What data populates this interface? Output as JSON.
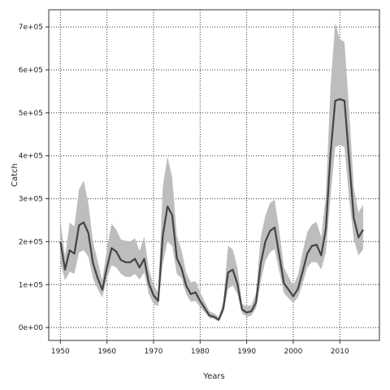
{
  "chart_data": {
    "type": "line",
    "title": "",
    "xlabel": "Years",
    "ylabel": "Catch",
    "xlim": [
      1947.5,
      2018.5
    ],
    "ylim": [
      -30000,
      740000
    ],
    "x_ticks": [
      1950,
      1960,
      1970,
      1980,
      1990,
      2000,
      2010
    ],
    "x_tick_labels": [
      "1950",
      "1960",
      "1970",
      "1980",
      "1990",
      "2000",
      "2010"
    ],
    "y_ticks": [
      0,
      100000,
      200000,
      300000,
      400000,
      500000,
      600000,
      700000
    ],
    "y_tick_labels": [
      "0e+00",
      "1e+05",
      "2e+05",
      "3e+05",
      "4e+05",
      "5e+05",
      "6e+05",
      "7e+05"
    ],
    "grid": true,
    "colors": {
      "line": "#444444",
      "band": "#bdbdbd",
      "grid": "#333333",
      "frame": "#333333"
    },
    "series": [
      {
        "x": [
          1950,
          1951,
          1952,
          1953,
          1954,
          1955,
          1956,
          1957,
          1958,
          1959,
          1960,
          1961,
          1962,
          1963,
          1964,
          1965,
          1966,
          1967,
          1968,
          1969,
          1970,
          1971,
          1972,
          1973,
          1974,
          1975,
          1976,
          1977,
          1978,
          1979,
          1980,
          1981,
          1982,
          1983,
          1984,
          1985,
          1986,
          1987,
          1988,
          1989,
          1990,
          1991,
          1992,
          1993,
          1994,
          1995,
          1996,
          1997,
          1998,
          1999,
          2000,
          2001,
          2002,
          2003,
          2004,
          2005,
          2006,
          2007,
          2008,
          2009,
          2010,
          2011,
          2012,
          2013,
          2014,
          2015
        ],
        "values": [
          200000,
          135000,
          180000,
          172000,
          238000,
          245000,
          220000,
          150000,
          115000,
          88000,
          140000,
          185000,
          177000,
          157000,
          152000,
          152000,
          160000,
          140000,
          160000,
          103000,
          75000,
          62000,
          215000,
          282000,
          262000,
          162000,
          138000,
          98000,
          78000,
          82000,
          62000,
          45000,
          28000,
          25000,
          18000,
          45000,
          128000,
          135000,
          102000,
          42000,
          35000,
          38000,
          58000,
          148000,
          200000,
          225000,
          233000,
          168000,
          103000,
          88000,
          73000,
          90000,
          130000,
          172000,
          190000,
          193000,
          168000,
          230000,
          405000,
          528000,
          532000,
          528000,
          390000,
          255000,
          210000,
          228000
        ],
        "lower": [
          150000,
          110000,
          130000,
          125000,
          175000,
          180000,
          165000,
          115000,
          90000,
          70000,
          115000,
          145000,
          140000,
          125000,
          118000,
          118000,
          125000,
          112000,
          128000,
          78000,
          55000,
          50000,
          150000,
          200000,
          190000,
          125000,
          115000,
          78000,
          60000,
          62000,
          48000,
          35000,
          22000,
          20000,
          14000,
          35000,
          90000,
          98000,
          78000,
          33000,
          25000,
          28000,
          45000,
          105000,
          155000,
          175000,
          183000,
          130000,
          80000,
          68000,
          58000,
          70000,
          102000,
          140000,
          152000,
          152000,
          135000,
          175000,
          305000,
          420000,
          425000,
          420000,
          300000,
          205000,
          168000,
          182000
        ],
        "upper": [
          250000,
          165000,
          245000,
          235000,
          322000,
          342000,
          290000,
          200000,
          155000,
          110000,
          185000,
          242000,
          228000,
          205000,
          202000,
          200000,
          208000,
          178000,
          212000,
          135000,
          100000,
          80000,
          330000,
          398000,
          350000,
          215000,
          180000,
          128000,
          105000,
          108000,
          82000,
          60000,
          38000,
          33000,
          25000,
          62000,
          190000,
          182000,
          140000,
          55000,
          50000,
          52000,
          80000,
          210000,
          260000,
          290000,
          298000,
          225000,
          140000,
          118000,
          98000,
          122000,
          175000,
          222000,
          240000,
          246000,
          210000,
          308000,
          560000,
          710000,
          672000,
          665000,
          505000,
          325000,
          268000,
          286000
        ]
      }
    ]
  }
}
